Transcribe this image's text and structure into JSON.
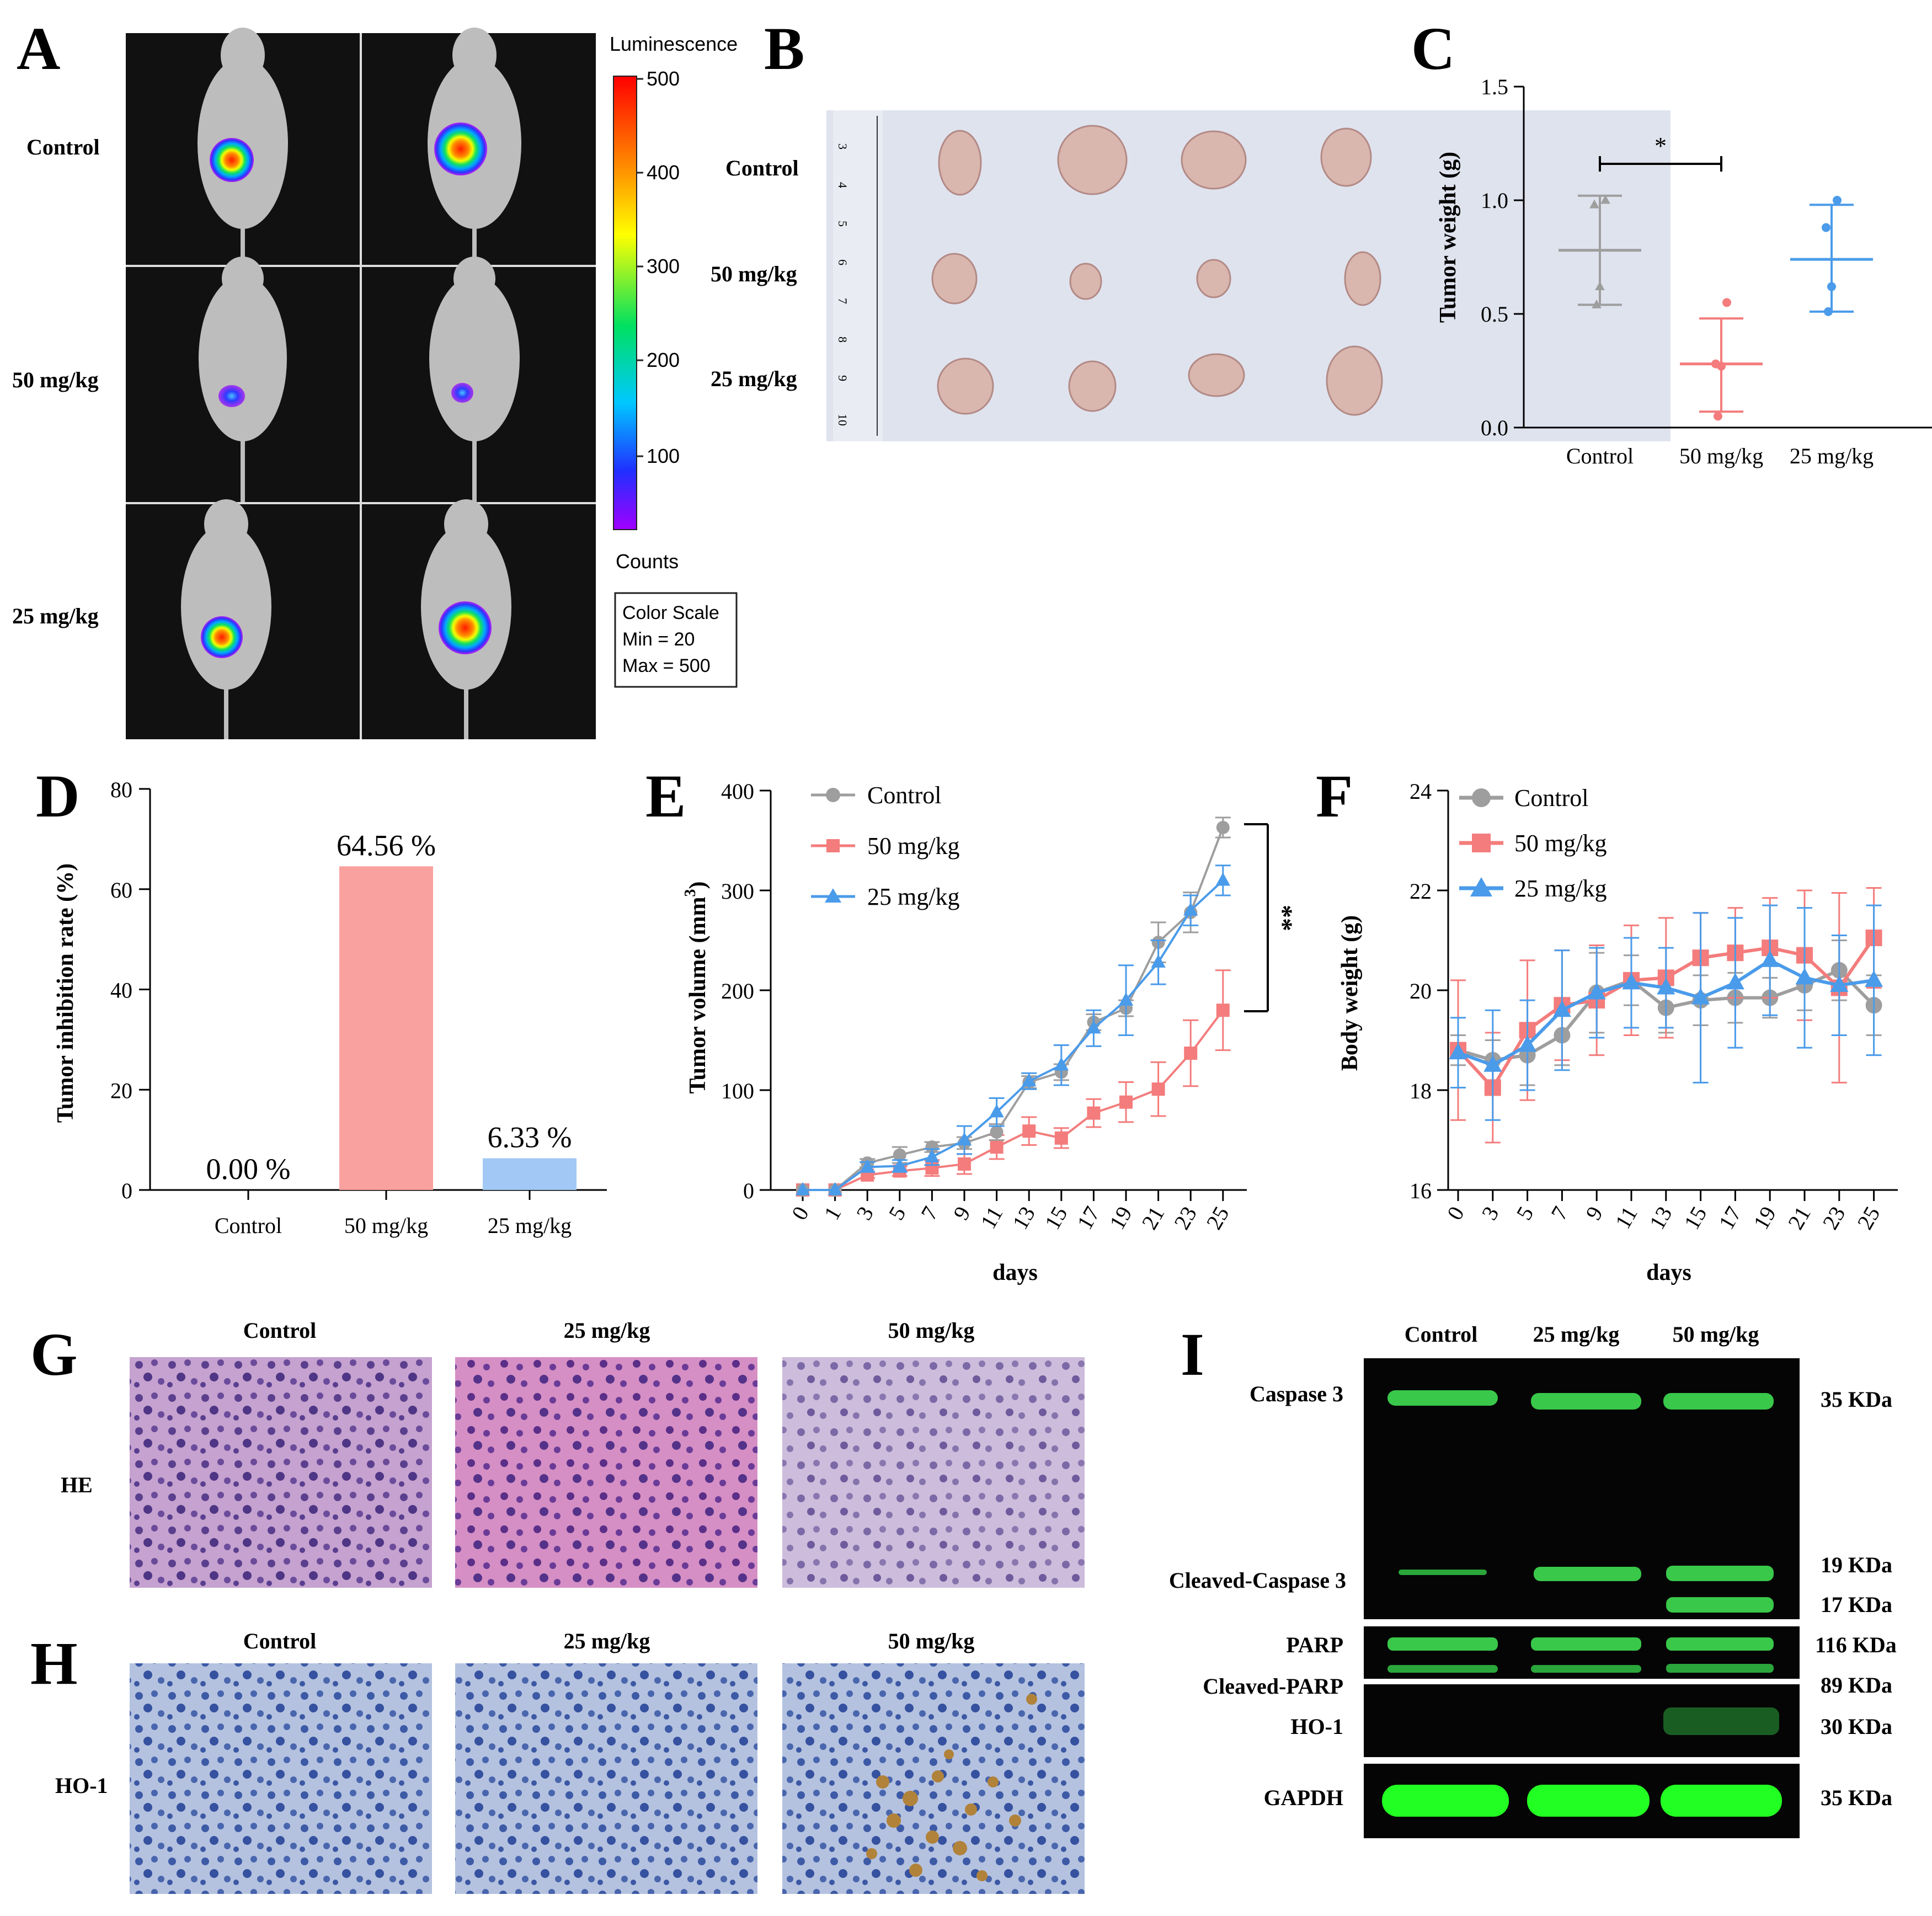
{
  "panels": {
    "A": {
      "letter": "A",
      "groups": [
        "Control",
        "50 mg/kg",
        "25 mg/kg"
      ],
      "colorbar": {
        "title": "Luminescence",
        "ticks": [
          "500",
          "400",
          "300",
          "200",
          "100"
        ],
        "units": "Counts",
        "scale_box": [
          "Color Scale",
          "Min = 20",
          "Max = 500"
        ]
      }
    },
    "B": {
      "letter": "B",
      "groups": [
        "Control",
        "50 mg/kg",
        "25 mg/kg"
      ],
      "ruler_labels": [
        "3",
        "4",
        "5",
        "6",
        "7",
        "8",
        "9",
        "10"
      ]
    },
    "C": {
      "letter": "C"
    },
    "D": {
      "letter": "D"
    },
    "E": {
      "letter": "E"
    },
    "F": {
      "letter": "F"
    },
    "G": {
      "letter": "G",
      "row_label": "HE",
      "columns": [
        "Control",
        "25 mg/kg",
        "50 mg/kg"
      ]
    },
    "H": {
      "letter": "H",
      "row_label": "HO-1",
      "columns": [
        "Control",
        "25 mg/kg",
        "50 mg/kg"
      ]
    },
    "I": {
      "letter": "I",
      "columns": [
        "Control",
        "25 mg/kg",
        "50 mg/kg"
      ],
      "proteins": [
        "Caspase 3",
        "Cleaved-Caspase 3",
        "PARP",
        "Cleaved-PARP",
        "HO-1",
        "GAPDH"
      ],
      "sizes": [
        "35 KDa",
        "19 KDa",
        "17 KDa",
        "116 KDa",
        "89 KDa",
        "30 KDa",
        "35 KDa"
      ]
    }
  },
  "colors": {
    "control": "#9E9E9E",
    "mg50": "#F47C7C",
    "mg25": "#4A9BEA",
    "bar50": "#F9A19F",
    "bar25": "#A2C8F5"
  },
  "chart_data": [
    {
      "panel": "C",
      "type": "scatter",
      "ylabel": "Tumor weight (g)",
      "ylim": [
        0,
        1.5
      ],
      "yticks": [
        "0.0",
        "0.5",
        "1.0",
        "1.5"
      ],
      "categories": [
        "Control",
        "50 mg/kg",
        "25 mg/kg"
      ],
      "series": [
        {
          "name": "Control",
          "points": [
            1.0,
            0.98,
            0.62,
            0.54
          ],
          "mean": 0.78,
          "upper": 1.02,
          "lower": 0.54
        },
        {
          "name": "50 mg/kg",
          "points": [
            0.55,
            0.28,
            0.27,
            0.05
          ],
          "mean": 0.28,
          "upper": 0.48,
          "lower": 0.07
        },
        {
          "name": "25 mg/kg",
          "points": [
            1.0,
            0.88,
            0.62,
            0.51
          ],
          "mean": 0.74,
          "upper": 0.98,
          "lower": 0.51
        }
      ],
      "annotation": "*"
    },
    {
      "panel": "D",
      "type": "bar",
      "ylabel": "Tumor inhibition rate (%)",
      "ylim": [
        0,
        80
      ],
      "yticks": [
        "0",
        "20",
        "40",
        "60",
        "80"
      ],
      "categories": [
        "Control",
        "50 mg/kg",
        "25 mg/kg"
      ],
      "values": [
        0.0,
        64.56,
        6.33
      ],
      "value_labels": [
        "0.00 %",
        "64.56 %",
        "6.33 %"
      ]
    },
    {
      "panel": "E",
      "type": "line",
      "ylabel": "Tumor volume (mm",
      "ylabel_sup": "3",
      "ylabel_end": ")",
      "xlabel": "days",
      "ylim": [
        0,
        400
      ],
      "yticks": [
        "0",
        "100",
        "200",
        "300",
        "400"
      ],
      "x": [
        "0",
        "1",
        "3",
        "5",
        "7",
        "9",
        "11",
        "13",
        "15",
        "17",
        "19",
        "21",
        "23",
        "25"
      ],
      "series": [
        {
          "name": "Control",
          "values": [
            0,
            0,
            27,
            35,
            43,
            47,
            58,
            108,
            118,
            168,
            182,
            248,
            278,
            363
          ],
          "err": [
            0,
            0,
            4,
            8,
            5,
            6,
            8,
            6,
            8,
            8,
            8,
            20,
            20,
            10
          ]
        },
        {
          "name": "50 mg/kg",
          "values": [
            0,
            0,
            15,
            19,
            22,
            26,
            43,
            59,
            52,
            77,
            88,
            101,
            137,
            180
          ],
          "err": [
            0,
            0,
            3,
            5,
            8,
            10,
            12,
            14,
            10,
            14,
            20,
            27,
            33,
            40
          ]
        },
        {
          "name": "25 mg/kg",
          "values": [
            0,
            0,
            23,
            24,
            33,
            50,
            78,
            109,
            125,
            162,
            190,
            228,
            280,
            310
          ],
          "err": [
            0,
            0,
            5,
            6,
            8,
            14,
            14,
            8,
            20,
            18,
            35,
            22,
            15,
            15
          ]
        }
      ],
      "annotation": "**"
    },
    {
      "panel": "F",
      "type": "line",
      "ylabel": "Body weight (g)",
      "xlabel": "days",
      "ylim": [
        16,
        24
      ],
      "yticks": [
        "16",
        "18",
        "20",
        "22",
        "24"
      ],
      "x": [
        "0",
        "3",
        "5",
        "7",
        "9",
        "11",
        "13",
        "15",
        "17",
        "19",
        "21",
        "23",
        "25"
      ],
      "series": [
        {
          "name": "Control",
          "values": [
            18.8,
            18.6,
            18.7,
            19.1,
            19.95,
            20.2,
            19.65,
            19.8,
            19.85,
            19.85,
            20.1,
            20.4,
            19.7
          ],
          "err": [
            0.3,
            0.4,
            0.6,
            0.6,
            0.8,
            0.5,
            0.5,
            0.5,
            0.5,
            0.4,
            0.5,
            0.6,
            0.6
          ]
        },
        {
          "name": "50 mg/kg",
          "values": [
            18.8,
            18.05,
            19.2,
            19.7,
            19.8,
            20.2,
            20.25,
            20.65,
            20.75,
            20.85,
            20.7,
            20.05,
            21.05
          ],
          "err": [
            1.4,
            1.1,
            1.4,
            1.1,
            1.1,
            1.1,
            1.2,
            0.9,
            0.9,
            1.0,
            1.3,
            1.9,
            1.0
          ]
        },
        {
          "name": "25 mg/kg",
          "values": [
            18.75,
            18.5,
            18.9,
            19.6,
            19.95,
            20.15,
            20.05,
            19.85,
            20.15,
            20.6,
            20.25,
            20.1,
            20.2
          ],
          "err": [
            0.7,
            1.1,
            0.9,
            1.2,
            0.9,
            0.9,
            0.8,
            1.7,
            1.3,
            1.1,
            1.4,
            1.0,
            1.5
          ]
        }
      ]
    }
  ]
}
